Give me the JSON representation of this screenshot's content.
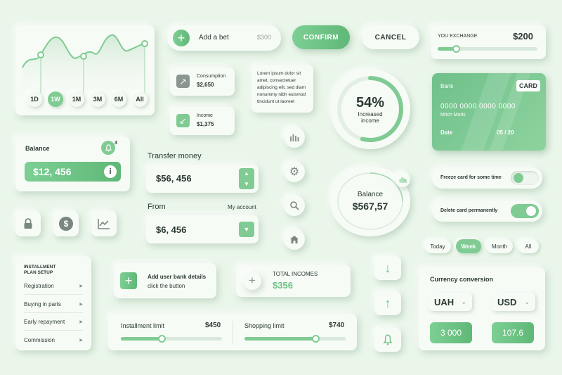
{
  "chart_card": {
    "ranges": [
      "1D",
      "1W",
      "1M",
      "3M",
      "6M",
      "All"
    ],
    "active_range": "1W"
  },
  "bet": {
    "label": "Add a bet",
    "amount": "$300"
  },
  "confirm_label": "CONFIRM",
  "cancel_label": "CANCEL",
  "exchange": {
    "label": "YOU EXCHANGE",
    "amount": "$200",
    "slider_fraction": 0.18
  },
  "consumption": {
    "label": "Consumption",
    "amount": "$2,650"
  },
  "income": {
    "label": "Income",
    "amount": "$1,375"
  },
  "lorem": "Lorem ipsum dolor sit amet, consectetuer adipiscing elit, sed diam nonummy nibh euismod tincidunt ut laoreet",
  "increased_income": {
    "percent": "54%",
    "label_line1": "Increased",
    "label_line2": "income",
    "fraction": 0.54
  },
  "bank_card": {
    "bank": "Bank",
    "badge": "CARD",
    "number": "0000 0000 0000 0000",
    "holder": "Mitch Moris",
    "date_label": "Date",
    "date_value": "05 / 20"
  },
  "balance_card": {
    "label": "Balance",
    "value": "$12, 456",
    "notif_count": "3"
  },
  "transfer": {
    "label": "Transfer money",
    "value": "$56, 456"
  },
  "from": {
    "label": "From",
    "account": "My account",
    "value": "$6, 456"
  },
  "balance_circle": {
    "label": "Balance",
    "value": "$567,57"
  },
  "freeze": {
    "label": "Freeze card for some time",
    "on": false
  },
  "delete_card": {
    "label": "Delete card permanently",
    "on": true
  },
  "periods": [
    "Today",
    "Week",
    "Month",
    "All"
  ],
  "active_period": "Week",
  "installment_menu": {
    "title_line1": "INSTALLMENT",
    "title_line2": "PLAN SETUP",
    "items": [
      "Registration",
      "Buying in parts",
      "Early repayment",
      "Commission"
    ]
  },
  "bank_details": {
    "title": "Add user bank details",
    "subtitle": "click the button"
  },
  "total_incomes": {
    "label": "TOTAL INCOMES",
    "value": "$356"
  },
  "limits": {
    "installment": {
      "label": "Installment limit",
      "value": "$450",
      "fraction": 0.4
    },
    "shopping": {
      "label": "Shopping limit",
      "value": "$740",
      "fraction": 0.7
    }
  },
  "currency": {
    "title": "Currency conversion",
    "from_code": "UAH",
    "to_code": "USD",
    "from_amount": "3 000",
    "to_amount": "107.6"
  },
  "icons": {
    "chart_icon": "bar-chart-icon",
    "gear_icon": "gear-icon",
    "search_icon": "search-icon",
    "home_icon": "home-icon",
    "lock_icon": "lock-icon",
    "dollar_icon": "dollar-icon",
    "line_chart_icon": "line-chart-icon",
    "bell_icon": "bell-icon",
    "arrow_down_icon": "arrow-down-icon",
    "arrow_up_icon": "arrow-up-icon",
    "plus_icon": "plus-icon",
    "info_icon": "info-icon"
  },
  "colors": {
    "accent": "#7fcb93",
    "background": "#eaf6ea",
    "text": "#2b3a33"
  }
}
